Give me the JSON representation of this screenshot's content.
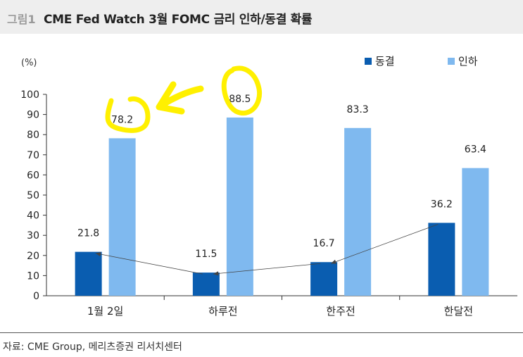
{
  "header": {
    "figure_label": "그림1",
    "title": "CME Fed Watch 3월 FOMC 금리 인하/동결 확률"
  },
  "source": "자료: CME Group, 메리츠증권 리서치센터",
  "colors": {
    "freeze": "#0a5db0",
    "cut": "#7fb9ef",
    "highlight": "#fff000",
    "axis": "#333333"
  },
  "chart_data": {
    "type": "bar",
    "unit_label": "(%)",
    "categories": [
      "1월 2일",
      "하루전",
      "한주전",
      "한달전"
    ],
    "series": [
      {
        "name": "동결",
        "values": [
          21.8,
          11.5,
          16.7,
          36.2
        ]
      },
      {
        "name": "인하",
        "values": [
          78.2,
          88.5,
          83.3,
          63.4
        ]
      }
    ],
    "y_ticks": [
      0,
      10,
      20,
      30,
      40,
      50,
      60,
      70,
      80,
      90,
      100
    ],
    "ylim": [
      0,
      100
    ],
    "legend_position": "top-right",
    "grid": false,
    "annotations": "yellow hand-drawn highlight circles around 78.2 and 88.5 with an arrow; thin trend line connecting 동결 bars"
  }
}
